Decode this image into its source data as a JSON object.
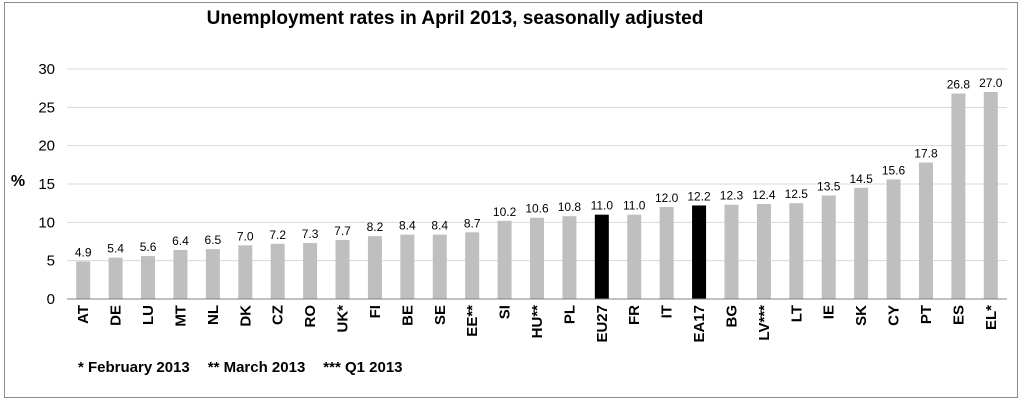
{
  "chart_data": {
    "type": "bar",
    "title": "Unemployment rates in April 2013, seasonally adjusted",
    "ylabel": "%",
    "xlabel": "",
    "ylim": [
      0,
      30
    ],
    "yticks": [
      0,
      5,
      10,
      15,
      20,
      25,
      30
    ],
    "grid": true,
    "categories": [
      "AT",
      "DE",
      "LU",
      "MT",
      "NL",
      "DK",
      "CZ",
      "RO",
      "UK*",
      "FI",
      "BE",
      "SE",
      "EE**",
      "SI",
      "HU**",
      "PL",
      "EU27",
      "FR",
      "IT",
      "EA17",
      "BG",
      "LV***",
      "LT",
      "IE",
      "SK",
      "CY",
      "PT",
      "ES",
      "EL*"
    ],
    "values": [
      4.9,
      5.4,
      5.6,
      6.4,
      6.5,
      7.0,
      7.2,
      7.3,
      7.7,
      8.2,
      8.4,
      8.4,
      8.7,
      10.2,
      10.6,
      10.8,
      11.0,
      11.0,
      12.0,
      12.2,
      12.3,
      12.4,
      12.5,
      13.5,
      14.5,
      15.6,
      17.8,
      26.8,
      27.0
    ],
    "value_labels": [
      "4.9",
      "5.4",
      "5.6",
      "6.4",
      "6.5",
      "7.0",
      "7.2",
      "7.3",
      "7.7",
      "8.2",
      "8.4",
      "8.4",
      "8.7",
      "10.2",
      "10.6",
      "10.8",
      "11.0",
      "11.0",
      "12.0",
      "12.2",
      "12.3",
      "12.4",
      "12.5",
      "13.5",
      "14.5",
      "15.6",
      "17.8",
      "26.8",
      "27.0"
    ],
    "highlighted": [
      "EU27",
      "EA17"
    ],
    "colors": {
      "bar": "#bfbfbf",
      "highlight": "#000000",
      "grid": "#d9d9d9",
      "axis": "#808080"
    }
  },
  "footnotes": [
    "* February 2013",
    "** March 2013",
    "*** Q1 2013"
  ]
}
